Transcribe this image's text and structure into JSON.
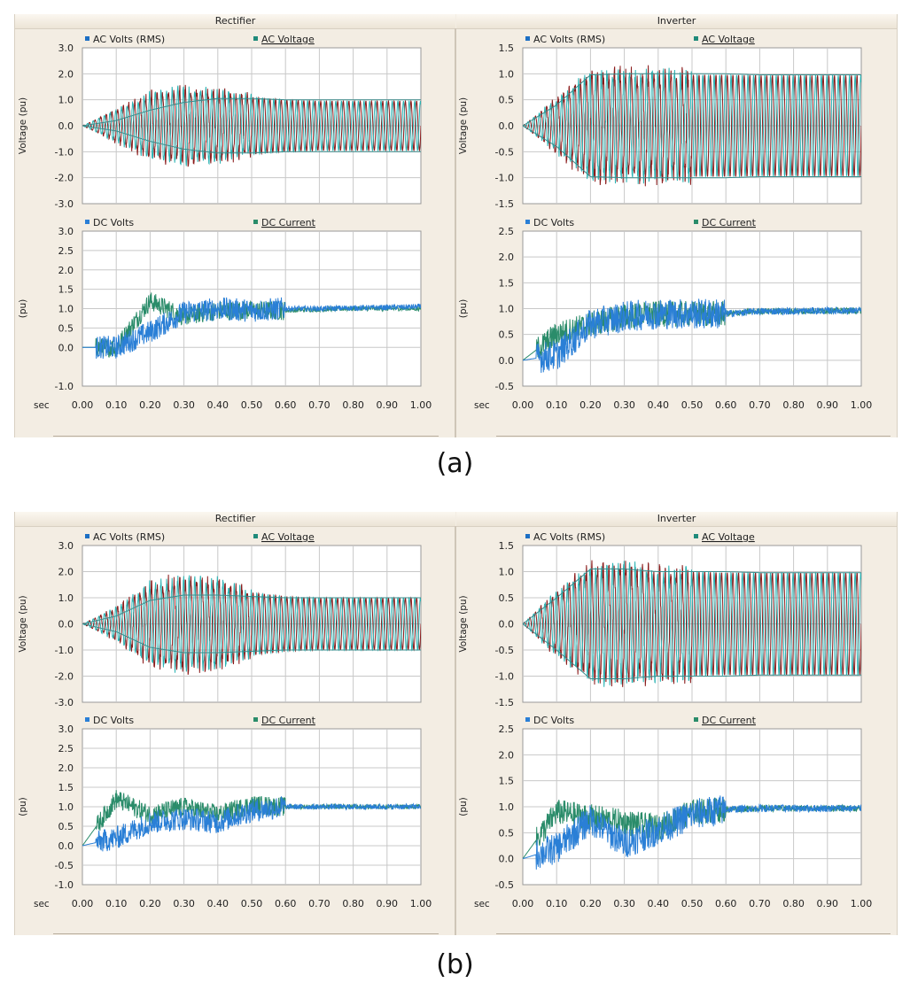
{
  "figures": [
    {
      "caption": "(a)",
      "columns": [
        {
          "title": "Rectifier"
        },
        {
          "title": "Inverter"
        }
      ]
    },
    {
      "caption": "(b)",
      "columns": [
        {
          "title": "Rectifier"
        },
        {
          "title": "Inverter"
        }
      ]
    }
  ],
  "colors": {
    "ac_rms": "#1c6fc4",
    "ac_voltage": "#1f8a7a",
    "ac_dark": "#8a1a1a",
    "ac_cyan": "#2bb3b3",
    "dc_volts": "#2a7fd6",
    "dc_current": "#2a8c6a"
  },
  "xaxis": {
    "label": "sec",
    "ticks": [
      "0.00",
      "0.10",
      "0.20",
      "0.30",
      "0.40",
      "0.50",
      "0.60",
      "0.70",
      "0.80",
      "0.90",
      "1.00"
    ]
  },
  "chart_data": [
    {
      "id": "a-rect-ac",
      "type": "line",
      "ylabel": "Voltage (pu)",
      "yticks": [
        "3.0",
        "2.0",
        "1.0",
        "0.0",
        "-1.0",
        "-2.0",
        "-3.0"
      ],
      "ylim": [
        -3,
        3
      ],
      "xlim": [
        0,
        1
      ],
      "series": [
        {
          "name": "AC Volts (RMS)",
          "values": [
            0,
            0.2,
            0.6,
            0.9,
            1.05,
            1.05,
            1.0,
            1.0,
            1.0,
            1.0,
            1.0
          ]
        },
        {
          "name": "AC Voltage",
          "amplitude": [
            0,
            0.6,
            1.2,
            1.4,
            1.3,
            1.1,
            1.0,
            0.95,
            0.95,
            0.95,
            0.95
          ]
        }
      ]
    },
    {
      "id": "a-rect-dc",
      "type": "line",
      "ylabel": "(pu)",
      "yticks": [
        "3.0",
        "2.5",
        "2.0",
        "1.5",
        "1.0",
        "0.5",
        "0.0",
        "-1.0"
      ],
      "ylim": [
        -1,
        3
      ],
      "xlim": [
        0,
        1
      ],
      "series": [
        {
          "name": "DC Volts",
          "values": [
            0,
            0.0,
            0.4,
            0.9,
            1.0,
            0.95,
            1.0,
            1.0,
            1.02,
            1.03,
            1.05
          ]
        },
        {
          "name": "DC Current",
          "values": [
            0,
            0.0,
            1.2,
            0.8,
            0.95,
            0.95,
            0.95,
            0.98,
            1.0,
            1.0,
            1.0
          ]
        }
      ]
    },
    {
      "id": "a-inv-ac",
      "type": "line",
      "ylabel": "Voltage (pu)",
      "yticks": [
        "1.5",
        "1.0",
        "0.5",
        "0.0",
        "-0.5",
        "-1.0",
        "-1.5"
      ],
      "ylim": [
        -1.5,
        1.5
      ],
      "xlim": [
        0,
        1
      ],
      "series": [
        {
          "name": "AC Volts (RMS)",
          "values": [
            0,
            0.4,
            0.98,
            1.0,
            1.0,
            1.0,
            1.0,
            0.98,
            0.98,
            0.98,
            0.98
          ]
        },
        {
          "name": "AC Voltage",
          "amplitude": [
            0,
            0.5,
            1.0,
            1.0,
            1.0,
            0.98,
            0.98,
            0.97,
            0.97,
            0.97,
            0.97
          ]
        }
      ]
    },
    {
      "id": "a-inv-dc",
      "type": "line",
      "ylabel": "(pu)",
      "yticks": [
        "2.5",
        "2.0",
        "1.5",
        "1.0",
        "0.5",
        "0.0",
        "-0.5"
      ],
      "ylim": [
        -0.5,
        2.5
      ],
      "xlim": [
        0,
        1
      ],
      "series": [
        {
          "name": "DC Volts",
          "values": [
            0,
            0.1,
            0.7,
            0.85,
            0.9,
            0.9,
            0.9,
            0.95,
            0.95,
            0.96,
            0.96
          ]
        },
        {
          "name": "DC Current",
          "values": [
            0,
            0.5,
            0.7,
            0.85,
            0.9,
            0.9,
            0.9,
            0.95,
            0.95,
            0.96,
            0.96
          ]
        }
      ]
    },
    {
      "id": "b-rect-ac",
      "type": "line",
      "ylabel": "Voltage (pu)",
      "yticks": [
        "3.0",
        "2.0",
        "1.0",
        "0.0",
        "-1.0",
        "-2.0",
        "-3.0"
      ],
      "ylim": [
        -3,
        3
      ],
      "xlim": [
        0,
        1
      ],
      "series": [
        {
          "name": "AC Volts (RMS)",
          "values": [
            0,
            0.3,
            0.9,
            1.1,
            1.1,
            1.05,
            1.0,
            1.0,
            1.0,
            1.0,
            1.0
          ]
        },
        {
          "name": "AC Voltage",
          "amplitude": [
            0,
            0.6,
            1.5,
            1.7,
            1.6,
            1.2,
            1.05,
            1.0,
            1.0,
            1.0,
            1.0
          ]
        }
      ]
    },
    {
      "id": "b-rect-dc",
      "type": "line",
      "ylabel": "(pu)",
      "yticks": [
        "3.0",
        "2.5",
        "2.0",
        "1.5",
        "1.0",
        "0.5",
        "0.0",
        "-0.5",
        "-1.0"
      ],
      "ylim": [
        -1,
        3
      ],
      "xlim": [
        0,
        1
      ],
      "series": [
        {
          "name": "DC Volts",
          "values": [
            0,
            0.2,
            0.6,
            0.7,
            0.6,
            0.9,
            1.0,
            1.0,
            1.0,
            1.0,
            1.0
          ]
        },
        {
          "name": "DC Current",
          "values": [
            0,
            1.2,
            0.8,
            1.0,
            0.8,
            1.05,
            1.0,
            1.0,
            1.0,
            1.0,
            1.0
          ]
        }
      ]
    },
    {
      "id": "b-inv-ac",
      "type": "line",
      "ylabel": "Voltage (pu)",
      "yticks": [
        "1.5",
        "1.0",
        "0.5",
        "0.0",
        "-0.5",
        "-1.0",
        "-1.5"
      ],
      "ylim": [
        -1.5,
        1.5
      ],
      "xlim": [
        0,
        1
      ],
      "series": [
        {
          "name": "AC Volts (RMS)",
          "values": [
            0,
            0.5,
            1.05,
            1.05,
            1.0,
            1.0,
            1.0,
            0.98,
            0.98,
            0.98,
            0.98
          ]
        },
        {
          "name": "AC Voltage",
          "amplitude": [
            0,
            0.6,
            1.05,
            1.1,
            1.0,
            1.0,
            0.98,
            0.98,
            0.98,
            0.98,
            0.98
          ]
        }
      ]
    },
    {
      "id": "b-inv-dc",
      "type": "line",
      "ylabel": "(pu)",
      "yticks": [
        "2.5",
        "2.0",
        "1.5",
        "1.0",
        "0.5",
        "0.0",
        "-0.5"
      ],
      "ylim": [
        -0.5,
        2.5
      ],
      "xlim": [
        0,
        1
      ],
      "series": [
        {
          "name": "DC Volts",
          "values": [
            0,
            0.2,
            0.75,
            0.3,
            0.55,
            0.85,
            0.95,
            0.97,
            0.97,
            0.97,
            0.97
          ]
        },
        {
          "name": "DC Current",
          "values": [
            0,
            0.9,
            0.8,
            0.7,
            0.6,
            0.9,
            0.95,
            0.97,
            0.97,
            0.97,
            0.97
          ]
        }
      ]
    }
  ],
  "legend": {
    "ac": [
      "AC Volts (RMS)",
      "AC Voltage"
    ],
    "dc": [
      "DC Volts",
      "DC Current"
    ]
  }
}
